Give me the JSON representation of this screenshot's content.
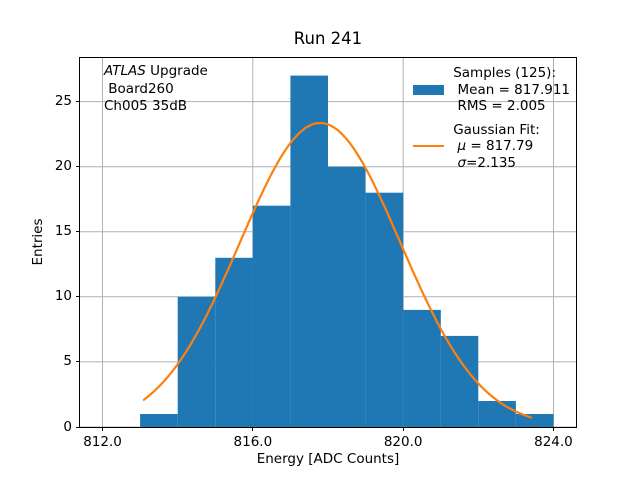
{
  "title": "Run 241",
  "annotation": {
    "line1_italic": "ATLAS",
    "line1_rest": " Upgrade",
    "line2": " Board260",
    "line3": "Ch005 35dB"
  },
  "legend": {
    "samples": {
      "heading": "Samples (125):",
      "mean": " Mean = 817.911",
      "rms": " RMS = 2.005"
    },
    "gaussian": {
      "heading": "Gaussian Fit:",
      "mu_symbol": "μ",
      "mu_value": " = 817.79",
      "sigma_symbol": "σ",
      "sigma_value": "=2.135"
    }
  },
  "chart_data": {
    "type": "bar",
    "subtype": "histogram_with_gaussian_fit",
    "title": "Run 241",
    "xlabel": "Energy [ADC Counts]",
    "ylabel": "Entries",
    "xlim": [
      811.4,
      824.6
    ],
    "ylim": [
      0,
      28.35
    ],
    "xticks": [
      812,
      816,
      820,
      824
    ],
    "xtick_labels": [
      "812.0",
      "816.0",
      "820.0",
      "824.0"
    ],
    "yticks": [
      0,
      5,
      10,
      15,
      20,
      25
    ],
    "ytick_labels": [
      "0",
      "5",
      "10",
      "15",
      "20",
      "25"
    ],
    "grid": true,
    "grid_color": "#b0b0b0",
    "legend_position": "upper right",
    "histogram": {
      "bin_edges": [
        813,
        814,
        815,
        816,
        817,
        818,
        819,
        820,
        821,
        822,
        823,
        824
      ],
      "counts": [
        1,
        10,
        13,
        17,
        27,
        20,
        18,
        9,
        7,
        2,
        1
      ],
      "n_samples": 125,
      "mean": 817.911,
      "rms": 2.005,
      "color": "#1f77b4"
    },
    "gaussian_fit": {
      "mu": 817.79,
      "sigma": 2.135,
      "amplitude": 23.36,
      "x_start": 813.1,
      "x_end": 823.4,
      "color": "#ff7f0e"
    }
  }
}
